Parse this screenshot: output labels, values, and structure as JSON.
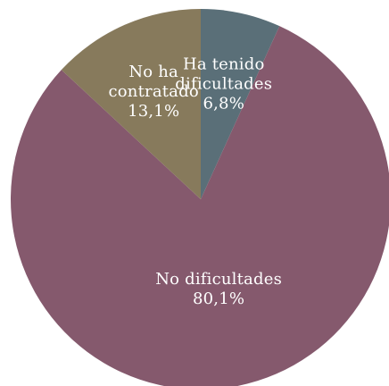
{
  "chart_data": {
    "type": "pie",
    "slices": [
      {
        "label": "Ha tenido dificultades",
        "value": 6.8,
        "value_label": "6,8%",
        "color": "#5a6f78"
      },
      {
        "label": "No dificultades",
        "value": 80.1,
        "value_label": "80,1%",
        "color": "#85596d"
      },
      {
        "label": "No ha contratado",
        "value": 13.1,
        "value_label": "13,1%",
        "color": "#877a5c"
      }
    ],
    "label_lines": [
      [
        "Ha tenido",
        "dificultades",
        "6,8%"
      ],
      [
        "No dificultades",
        "80,1%"
      ],
      [
        "No ha",
        "contratado",
        "13,1%"
      ]
    ],
    "start_angle_deg": 0,
    "direction": "clockwise"
  }
}
